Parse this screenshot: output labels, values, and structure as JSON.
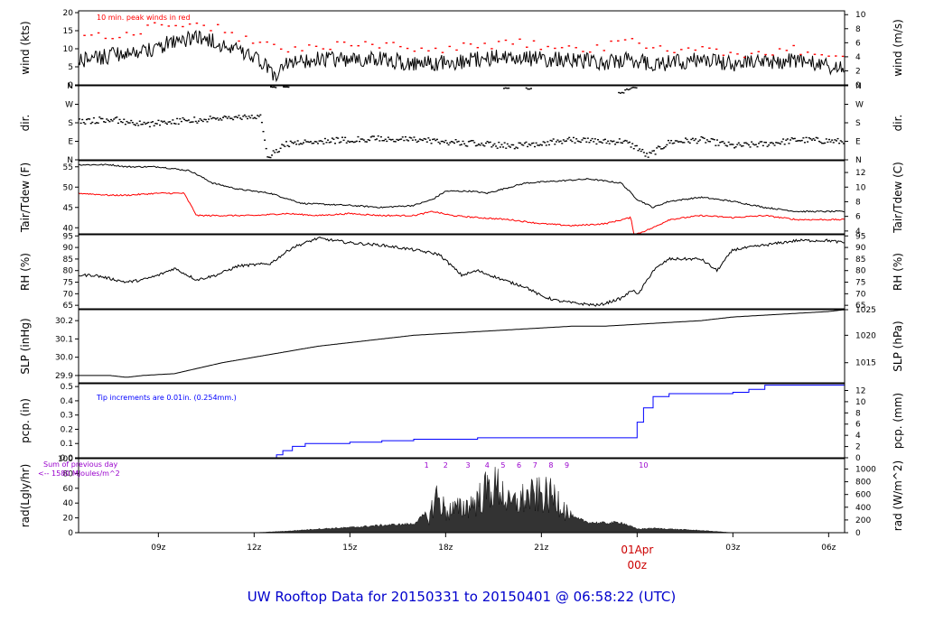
{
  "title": "UW Rooftop Data for 20150331  to  20150401 @ 06:58:22  (UTC)",
  "colors": {
    "axis": "#000000",
    "trace": "#000000",
    "peak": "#ff0000",
    "dewpoint": "#ff0000",
    "precip": "#0000ff",
    "title": "#0000cc",
    "annotation_purple": "#9900cc",
    "date_red": "#cc0000"
  },
  "chart_data": {
    "type": "line",
    "x_axis": {
      "range_hours": [
        6.5,
        30.5
      ],
      "ticks": [
        {
          "hour": 9,
          "label": "09z"
        },
        {
          "hour": 12,
          "label": "12z"
        },
        {
          "hour": 15,
          "label": "15z"
        },
        {
          "hour": 18,
          "label": "18z"
        },
        {
          "hour": 21,
          "label": "21z"
        },
        {
          "hour": 24,
          "label": "01Apr",
          "label2": "00z",
          "highlight": true
        },
        {
          "hour": 27,
          "label": "03z"
        },
        {
          "hour": 30,
          "label": "06z"
        }
      ]
    },
    "panels": [
      {
        "id": "wind",
        "left_label": "wind (kts)",
        "right_label": "wind (m/s)",
        "ylim": [
          0,
          20.5
        ],
        "left_ticks": [
          0,
          5,
          10,
          15,
          20
        ],
        "right_ticks": [
          "0",
          "2",
          "4",
          "6",
          "8",
          "10"
        ],
        "right_factor": 0.5144,
        "annotation": "10 min. peak winds in red",
        "series": [
          {
            "name": "wind speed",
            "style": "noisy",
            "x": [
              6.5,
              7.5,
              8.5,
              9.5,
              10,
              10.5,
              11,
              11.8,
              12.3,
              12.6,
              13,
              14,
              15,
              16,
              17,
              18,
              19,
              20,
              21,
              22,
              23,
              23.8,
              24.3,
              25,
              26,
              27,
              28,
              29,
              30,
              30.5
            ],
            "y": [
              7,
              8,
              9,
              12,
              13,
              13,
              11,
              8,
              6,
              2,
              6,
              7,
              7,
              7,
              6,
              6,
              7,
              8,
              7,
              7,
              6,
              7,
              6,
              6,
              7,
              6,
              6,
              7,
              5,
              4
            ]
          },
          {
            "name": "10 min. peak",
            "style": "dots",
            "x": [
              6.8,
              7.6,
              8.4,
              9.2,
              10,
              10.8,
              11.6,
              12.4,
              13.2,
              14,
              15,
              16,
              17,
              18,
              19,
              20,
              21,
              22,
              23,
              24,
              25,
              26,
              27,
              28,
              29,
              30
            ],
            "y": [
              13,
              14,
              15,
              17,
              17,
              16,
              13,
              11,
              10,
              11,
              11,
              11,
              10,
              10,
              11,
              12,
              11,
              10,
              11,
              12,
              10,
              10,
              9,
              9,
              10,
              8
            ]
          }
        ]
      },
      {
        "id": "dir",
        "left_label": "dir.",
        "right_label": "dir.",
        "ylim": [
          0,
          360
        ],
        "left_tick_values": [
          0,
          90,
          180,
          270,
          360
        ],
        "left_ticks": [
          "N",
          "E",
          "S",
          "W",
          "N"
        ],
        "right_ticks": [
          "N",
          "E",
          "S",
          "W",
          "N"
        ],
        "series": [
          {
            "name": "wind direction",
            "style": "scatter",
            "x": [
              6.5,
              7.5,
              8.5,
              9.5,
              10.5,
              11.5,
              12.2,
              12.4,
              13,
              14,
              15,
              16,
              17,
              18,
              19,
              20,
              21,
              22,
              23,
              23.5,
              24,
              24.3,
              25,
              26,
              27,
              28,
              29,
              30,
              30.5
            ],
            "y": [
              190,
              200,
              175,
              190,
              200,
              210,
              210,
              20,
              80,
              95,
              100,
              105,
              100,
              90,
              80,
              70,
              85,
              100,
              90,
              95,
              60,
              20,
              90,
              100,
              70,
              80,
              100,
              95,
              90
            ]
          },
          {
            "name": "wind direction (north)",
            "style": "scatter",
            "x": [
              12.5,
              12.9,
              19.8,
              20.5,
              23.4,
              23.6,
              23.8
            ],
            "y": [
              355,
              355,
              350,
              350,
              330,
              345,
              355
            ]
          }
        ]
      },
      {
        "id": "temp",
        "left_label": "Tair/Tdew (F)",
        "right_label": "Tair/Tdew (C)",
        "ylim": [
          38.5,
          56.5
        ],
        "left_ticks": [
          40,
          45,
          50,
          55
        ],
        "right_ticks": [
          "4",
          "6",
          "8",
          "10",
          "12"
        ],
        "right_c": true,
        "series": [
          {
            "name": "Tair",
            "x": [
              6.5,
              7.5,
              8,
              9,
              10,
              10.7,
              11.5,
              12.5,
              13.5,
              15,
              16,
              17,
              17.6,
              18,
              18.8,
              19.3,
              20.5,
              21.5,
              22.5,
              23,
              23.5,
              24,
              24.5,
              25,
              26,
              27,
              28,
              29,
              30,
              30.5
            ],
            "y": [
              55.5,
              55.5,
              55,
              55,
              54,
              51,
              49.5,
              48.5,
              46,
              45.5,
              45,
              45.5,
              47,
              49,
              49,
              48.5,
              51,
              51.5,
              52,
              51.5,
              51,
              47,
              45,
              46.5,
              47.5,
              46.5,
              45,
              44,
              44,
              44
            ]
          },
          {
            "name": "Tdew",
            "x": [
              6.5,
              7.5,
              8,
              9,
              9.8,
              10.2,
              11,
              12,
              13,
              14,
              15,
              16,
              17,
              17.6,
              18.2,
              19,
              20,
              21,
              22,
              23,
              23.8,
              23.9,
              24,
              24.5,
              25,
              26,
              27,
              28,
              29,
              30,
              30.5
            ],
            "y": [
              48.5,
              48,
              48,
              48.5,
              48.5,
              43,
              43,
              43,
              43.5,
              43,
              43.5,
              43,
              43,
              44,
              43,
              42.5,
              42,
              41,
              40.5,
              41,
              42.5,
              38.5,
              38.5,
              40,
              42,
              43,
              42.5,
              43,
              42,
              42,
              42
            ]
          }
        ]
      },
      {
        "id": "rh",
        "left_label": "RH (%)",
        "right_label": "RH (%)",
        "ylim": [
          63.5,
          95.5
        ],
        "left_ticks": [
          65,
          70,
          75,
          80,
          85,
          90,
          95
        ],
        "right_ticks": [
          "65",
          "70",
          "75",
          "80",
          "85",
          "90",
          "95"
        ],
        "series": [
          {
            "name": "RH",
            "x": [
              6.5,
              7,
              8,
              8.5,
              9,
              9.5,
              10.2,
              10.8,
              11.5,
              12.5,
              13.2,
              14,
              15,
              16,
              17,
              17.8,
              18.5,
              19,
              20,
              20.5,
              21,
              21.5,
              22,
              22.8,
              23.5,
              23.9,
              24,
              24.5,
              25,
              26,
              26.5,
              27,
              28,
              29,
              30,
              30.5
            ],
            "y": [
              78,
              78,
              75,
              76,
              78,
              81,
              76,
              78,
              82,
              83,
              90,
              94,
              92,
              91,
              89,
              87,
              78,
              80,
              75,
              73,
              69,
              67,
              66,
              65,
              68,
              72,
              69,
              80,
              85,
              85,
              80,
              89,
              91,
              93,
              93,
              92
            ]
          }
        ]
      },
      {
        "id": "slp",
        "left_label": "SLP (inHg)",
        "right_label": "SLP (hPa)",
        "ylim": [
          29.86,
          30.26
        ],
        "left_ticks": [
          "29.9",
          "30.0",
          "30.1",
          "30.2"
        ],
        "left_tick_values": [
          29.9,
          30.0,
          30.1,
          30.2
        ],
        "right_ticks": [
          "1015",
          "1020",
          "1025"
        ],
        "right_tick_values": [
          29.97,
          30.12,
          30.26
        ],
        "series": [
          {
            "name": "SLP",
            "x": [
              6.5,
              7.5,
              8,
              8.5,
              9.5,
              11,
              12,
              13,
              14,
              15,
              16,
              17,
              18,
              19,
              20,
              21,
              22,
              23,
              24,
              25,
              26,
              27,
              28,
              29,
              30,
              30.5
            ],
            "y": [
              29.9,
              29.9,
              29.89,
              29.9,
              29.91,
              29.97,
              30.0,
              30.03,
              30.06,
              30.08,
              30.1,
              30.12,
              30.13,
              30.14,
              30.15,
              30.16,
              30.17,
              30.17,
              30.18,
              30.19,
              30.2,
              30.22,
              30.23,
              30.24,
              30.25,
              30.26
            ]
          }
        ]
      },
      {
        "id": "pcp",
        "left_label": "pcp. (in)",
        "right_label": "pcp. (mm)",
        "ylim": [
          0,
          0.52
        ],
        "left_ticks": [
          "0.0",
          "0.1",
          "0.2",
          "0.3",
          "0.4",
          "0.5"
        ],
        "left_tick_values": [
          0,
          0.1,
          0.2,
          0.3,
          0.4,
          0.5
        ],
        "right_ticks": [
          "0",
          "2",
          "4",
          "6",
          "8",
          "10",
          "12"
        ],
        "right_factor": 25.4,
        "annotation": "Tip increments are 0.01in. (0.254mm.)",
        "series": [
          {
            "name": "precipitation",
            "style": "step",
            "x": [
              6.5,
              12.5,
              12.7,
              12.9,
              13.2,
              13.6,
              14,
              15,
              16,
              17,
              18,
              19,
              20,
              21,
              22,
              23,
              23.9,
              24,
              24.2,
              24.5,
              25,
              26,
              27,
              27.5,
              28,
              29,
              30,
              30.5
            ],
            "y": [
              0,
              0,
              0.02,
              0.05,
              0.08,
              0.1,
              0.1,
              0.11,
              0.12,
              0.13,
              0.13,
              0.14,
              0.14,
              0.14,
              0.14,
              0.14,
              0.14,
              0.25,
              0.35,
              0.43,
              0.45,
              0.45,
              0.46,
              0.48,
              0.51,
              0.51,
              0.51,
              0.51
            ]
          }
        ]
      },
      {
        "id": "rad",
        "left_label": "rad(Lgly/hr)",
        "right_label": "rad (W/m^2)",
        "ylim": [
          0,
          100
        ],
        "left_ticks": [
          "0",
          "20",
          "40",
          "60",
          "80",
          "100"
        ],
        "left_tick_values": [
          0,
          20,
          40,
          60,
          80,
          100
        ],
        "right_ticks": [
          "0",
          "200",
          "400",
          "600",
          "800",
          "1000"
        ],
        "right_factor": 11.63,
        "annotation_top": "Sum of previous day",
        "annotation_bottom": "<-- 1580 MJoules/m^2",
        "hour_markers": [
          {
            "hour": 17.4,
            "label": "1"
          },
          {
            "hour": 18.0,
            "label": "2"
          },
          {
            "hour": 18.7,
            "label": "3"
          },
          {
            "hour": 19.3,
            "label": "4"
          },
          {
            "hour": 19.8,
            "label": "5"
          },
          {
            "hour": 20.3,
            "label": "6"
          },
          {
            "hour": 20.8,
            "label": "7"
          },
          {
            "hour": 21.3,
            "label": "8"
          },
          {
            "hour": 21.8,
            "label": "9"
          },
          {
            "hour": 24.2,
            "label": "10"
          }
        ],
        "series": [
          {
            "name": "radiation",
            "style": "spiky",
            "x": [
              6.5,
              12,
              13,
              14,
              15,
              16,
              17,
              17.5,
              17.7,
              18,
              18.5,
              19,
              19.3,
              19.7,
              20,
              20.5,
              21,
              21.5,
              22,
              22.5,
              23,
              23.5,
              24,
              24.5,
              25,
              26,
              27,
              30.5
            ],
            "y": [
              0,
              0,
              2,
              5,
              7,
              10,
              12,
              30,
              70,
              40,
              45,
              60,
              80,
              85,
              50,
              65,
              70,
              65,
              20,
              14,
              13,
              14,
              5,
              6,
              5,
              3,
              0,
              0
            ]
          }
        ]
      }
    ]
  }
}
